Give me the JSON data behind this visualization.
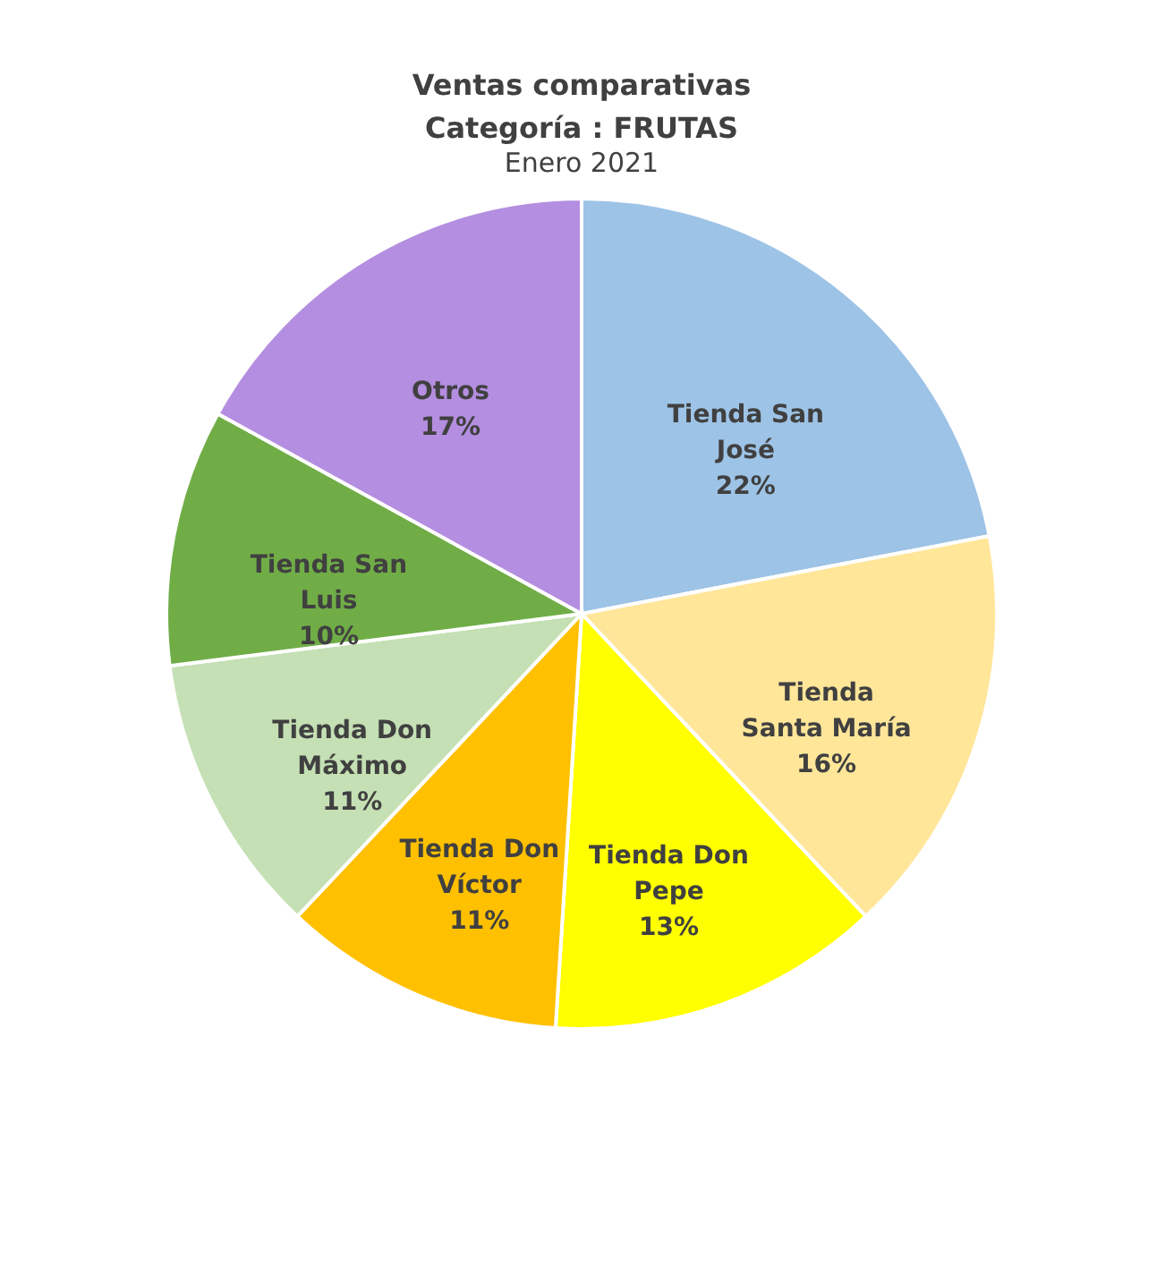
{
  "chart_data": {
    "type": "pie",
    "title": "Ventas comparativas\nCategoría : FRUTAS",
    "subtitle": "Enero 2021",
    "categories": [
      "Tienda San José",
      "Tienda Santa María",
      "Tienda Don Pepe",
      "Tienda Don Víctor",
      "Tienda Don Máximo",
      "Tienda San Luis",
      "Otros"
    ],
    "values": [
      22,
      16,
      13,
      11,
      11,
      10,
      17
    ],
    "colors": [
      "#9dc3e6",
      "#ffe699",
      "#ffff00",
      "#ffc000",
      "#c5e0b4",
      "#70ad47",
      "#b48ee0"
    ],
    "value_labels": [
      "22%",
      "16%",
      "13%",
      "11%",
      "11%",
      "10%",
      "17%"
    ],
    "legend": false
  }
}
